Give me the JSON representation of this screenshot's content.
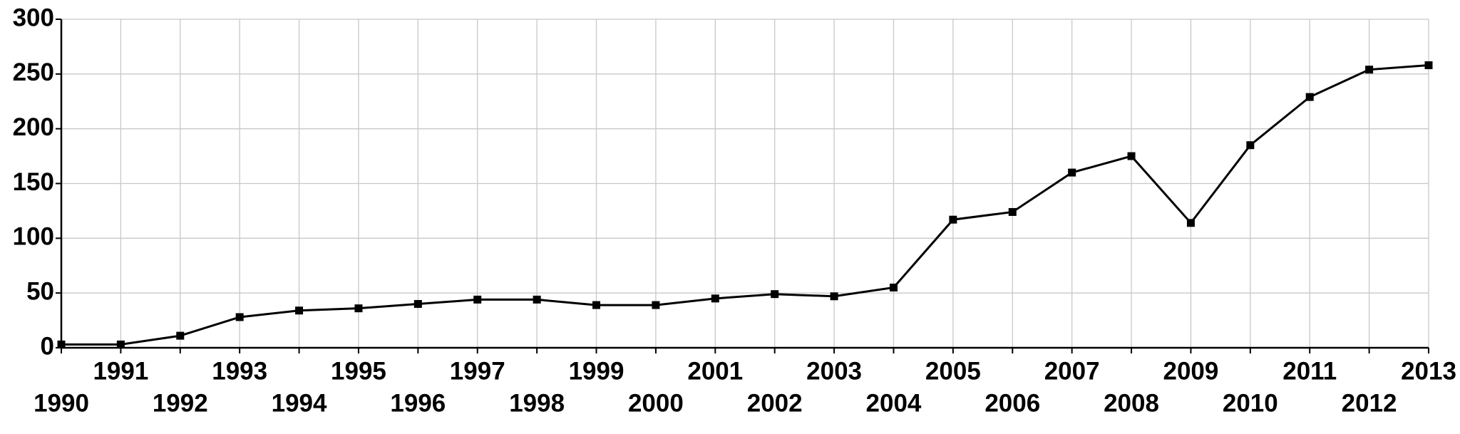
{
  "chart_data": {
    "type": "line",
    "x": [
      1990,
      1991,
      1992,
      1993,
      1994,
      1995,
      1996,
      1997,
      1998,
      1999,
      2000,
      2001,
      2002,
      2003,
      2004,
      2005,
      2006,
      2007,
      2008,
      2009,
      2010,
      2011,
      2012,
      2013
    ],
    "series": [
      {
        "color": "#000000",
        "values": [
          3,
          3,
          11,
          28,
          34,
          36,
          40,
          44,
          44,
          39,
          39,
          45,
          49,
          47,
          55,
          117,
          124,
          160,
          175,
          114,
          185,
          229,
          254,
          258
        ]
      }
    ],
    "xlim": [
      1990,
      2013
    ],
    "xticks": [
      1990,
      1991,
      1992,
      1993,
      1994,
      1995,
      1996,
      1997,
      1998,
      1999,
      2000,
      2001,
      2002,
      2003,
      2004,
      2005,
      2006,
      2007,
      2008,
      2009,
      2010,
      2011,
      2012,
      2013
    ],
    "ylim": [
      0,
      300
    ],
    "yticks": [
      0,
      50,
      100,
      150,
      200,
      250,
      300
    ],
    "grid": true
  }
}
